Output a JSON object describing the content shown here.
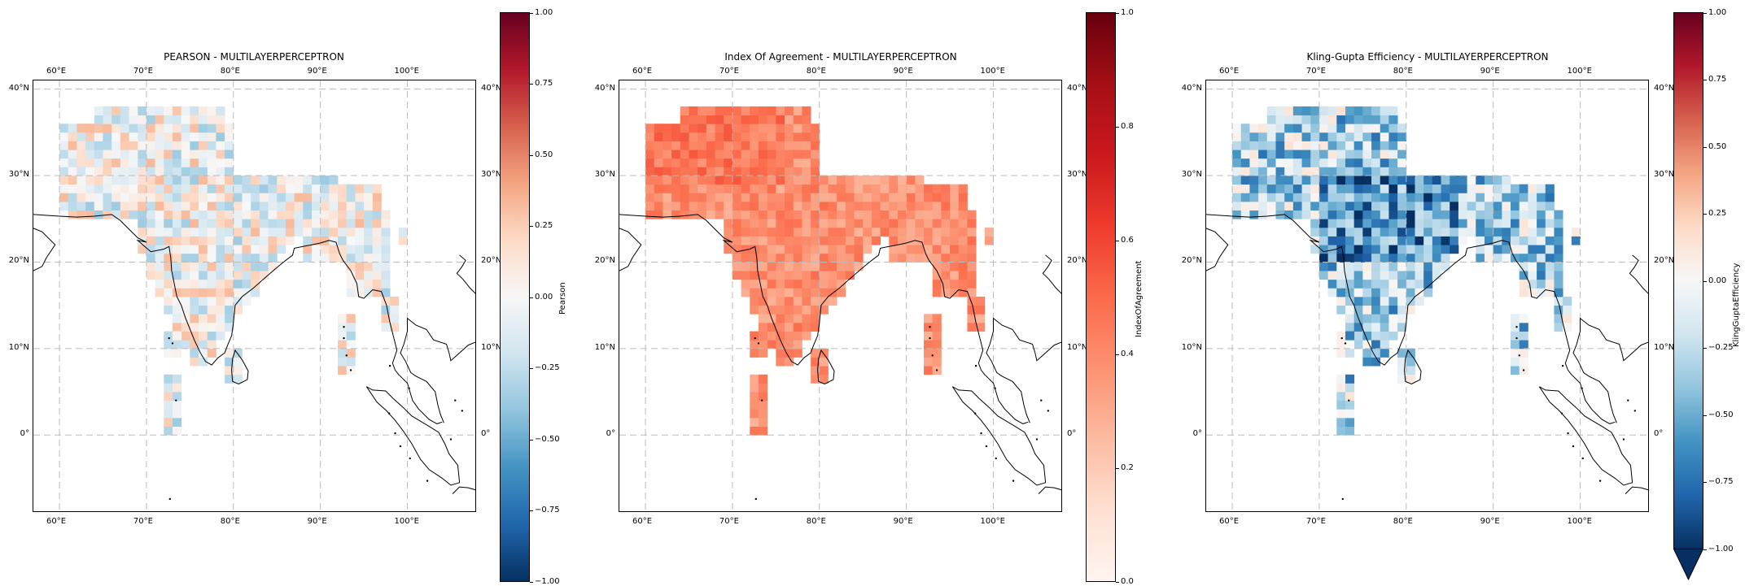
{
  "panels": [
    {
      "title": "PEARSON - MULTILAYERPERCEPTRON",
      "colorbar": {
        "label": "Pearson",
        "colormap": "RdBu_r",
        "vmin": -1.0,
        "vmax": 1.0,
        "ticks": [
          "1.00",
          "0.75",
          "0.50",
          "0.25",
          "0.00",
          "−0.25",
          "−0.50",
          "−0.75",
          "−1.00"
        ],
        "extend_min": false
      },
      "cell_value_range": [
        -0.6,
        0.35
      ],
      "cell_value_mean": -0.02
    },
    {
      "title": "Index Of Agreement - MULTILAYERPERCEPTRON",
      "colorbar": {
        "label": "IndexOfAgreement",
        "colormap": "Reds",
        "vmin": 0.0,
        "vmax": 1.0,
        "ticks": [
          "1.0",
          "0.8",
          "0.6",
          "0.4",
          "0.2",
          "0.0"
        ],
        "extend_min": false
      },
      "cell_value_range": [
        0.2,
        0.55
      ],
      "cell_value_mean": 0.38
    },
    {
      "title": "Kling-Gupta Efficiency - MULTILAYERPERCEPTRON",
      "colorbar": {
        "label": "KlingGuptaEfficiency",
        "colormap": "RdBu_r",
        "vmin": -1.0,
        "vmax": 1.0,
        "ticks": [
          "1.00",
          "0.75",
          "0.50",
          "0.25",
          "0.00",
          "−0.25",
          "−0.50",
          "−0.75",
          "−1.00"
        ],
        "extend_min": true
      },
      "cell_value_range": [
        -1.0,
        0.3
      ],
      "cell_value_mean": -0.3
    }
  ],
  "map": {
    "projection": "PlateCarree",
    "lon_range": [
      57,
      108
    ],
    "lat_range": [
      -9,
      41
    ],
    "grid_resolution_deg": 1,
    "gridlines": true,
    "lon_tick_labels": [
      "60°E",
      "70°E",
      "80°E",
      "90°E",
      "100°E"
    ],
    "lat_tick_labels": [
      "40°N",
      "30°N",
      "20°N",
      "10°N",
      "0°"
    ]
  }
}
